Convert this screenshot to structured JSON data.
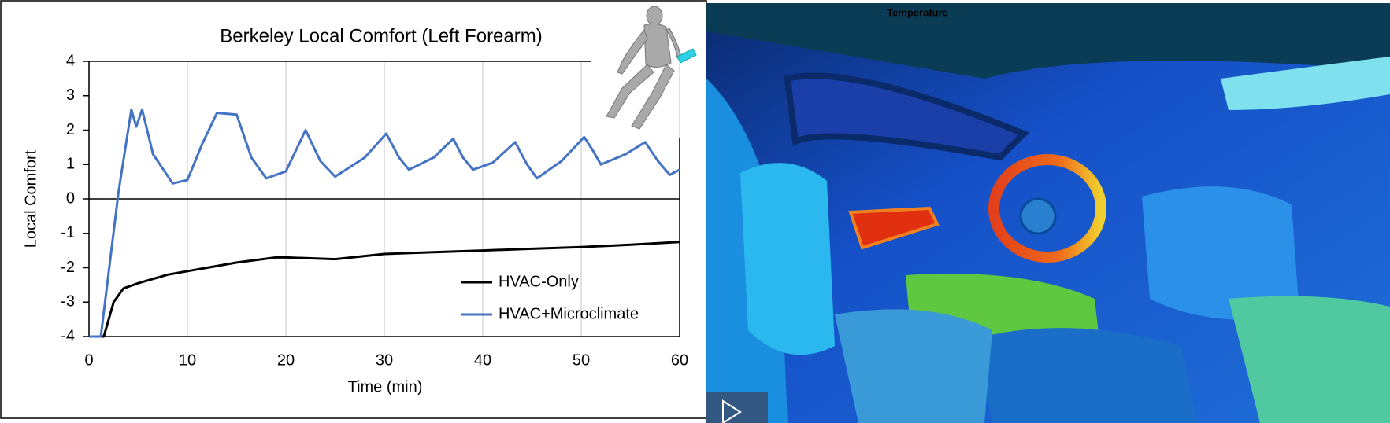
{
  "chart_data": {
    "type": "line",
    "title": "Berkeley Local Comfort (Left Forearm)",
    "x_label": "Time (min)",
    "y_label": "Local Comfort",
    "xlim": [
      0,
      60
    ],
    "ylim": [
      -4,
      4
    ],
    "xticks": [
      0,
      10,
      20,
      30,
      40,
      50,
      60
    ],
    "yticks": [
      -4,
      -3,
      -2,
      -1,
      0,
      1,
      2,
      3,
      4
    ],
    "grid": true,
    "legend": "lower-right",
    "series": [
      {
        "name": "HVAC-Only",
        "color": "#000000",
        "x": [
          0,
          1.5,
          2.5,
          3.5,
          5,
          8,
          12,
          15,
          19,
          20,
          22,
          25,
          30,
          35,
          40,
          45,
          50,
          55,
          60
        ],
        "values": [
          -4,
          -4,
          -3.0,
          -2.6,
          -2.45,
          -2.2,
          -2.0,
          -1.85,
          -1.7,
          -1.7,
          -1.72,
          -1.75,
          -1.6,
          -1.55,
          -1.5,
          -1.45,
          -1.4,
          -1.33,
          -1.25
        ]
      },
      {
        "name": "HVAC+Microclimate",
        "color": "#4472c4",
        "x": [
          0,
          1.2,
          3,
          4.3,
          4.8,
          5.4,
          6.5,
          8.5,
          10,
          11.5,
          13,
          15,
          16.5,
          18,
          20,
          22,
          23.5,
          25,
          28,
          30.2,
          31.5,
          32.5,
          35,
          37,
          38,
          39,
          41,
          43.3,
          44.5,
          45.5,
          48,
          50.3,
          51.2,
          52,
          54.5,
          56.5,
          57.8,
          59,
          60
        ],
        "values": [
          -4,
          -4,
          0.2,
          2.6,
          2.1,
          2.6,
          1.3,
          0.45,
          0.55,
          1.6,
          2.5,
          2.45,
          1.2,
          0.6,
          0.8,
          2.0,
          1.1,
          0.65,
          1.2,
          1.9,
          1.2,
          0.85,
          1.2,
          1.75,
          1.2,
          0.85,
          1.05,
          1.65,
          1.0,
          0.6,
          1.1,
          1.8,
          1.4,
          1.0,
          1.3,
          1.65,
          1.1,
          0.7,
          0.85
        ]
      }
    ]
  },
  "render_panel": {
    "label": "Temperature"
  }
}
